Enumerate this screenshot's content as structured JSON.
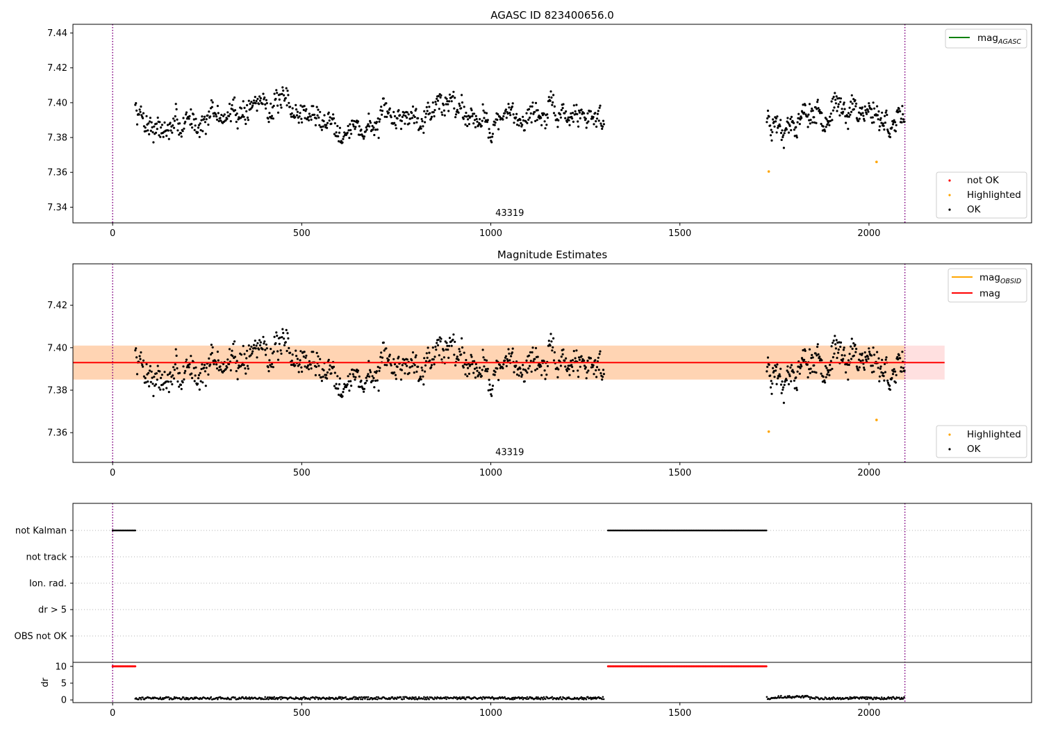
{
  "chart_data": [
    {
      "id": "p1",
      "type": "scatter",
      "title": "AGASC ID 823400656.0",
      "xlim": [
        -105,
        2430
      ],
      "ylim": [
        7.331,
        7.445
      ],
      "xticks": [
        0,
        500,
        1000,
        1500,
        2000
      ],
      "yticks": [
        7.34,
        7.36,
        7.38,
        7.4,
        7.42,
        7.44
      ],
      "ytick_labels": [
        "7.34",
        "7.36",
        "7.38",
        "7.40",
        "7.42",
        "7.44"
      ],
      "vlines": [
        0,
        2095
      ],
      "annotation": {
        "text": "43319",
        "x": 1050,
        "y": 7.335
      },
      "lines_legend": [
        {
          "label": "mag",
          "subscript": "AGASC",
          "color": "#008000"
        }
      ],
      "points_legend": [
        {
          "label": "not OK",
          "color": "#ff0000"
        },
        {
          "label": "Highlighted",
          "color": "#ffa500"
        },
        {
          "label": "OK",
          "color": "#000000"
        }
      ],
      "highlighted": [
        {
          "x": 1735,
          "y": 7.3605
        },
        {
          "x": 2020,
          "y": 7.366
        }
      ],
      "segments": [
        {
          "x_start": 60,
          "x_end": 1300,
          "step": 1.65,
          "seed": 7,
          "anchors": [
            [
              60,
              7.397
            ],
            [
              100,
              7.388
            ],
            [
              150,
              7.383
            ],
            [
              200,
              7.39
            ],
            [
              300,
              7.392
            ],
            [
              400,
              7.401
            ],
            [
              500,
              7.394
            ],
            [
              600,
              7.388
            ],
            [
              650,
              7.384
            ],
            [
              700,
              7.388
            ],
            [
              800,
              7.395
            ],
            [
              900,
              7.401
            ],
            [
              1000,
              7.388
            ],
            [
              1100,
              7.394
            ],
            [
              1200,
              7.392
            ],
            [
              1300,
              7.393
            ]
          ]
        },
        {
          "x_start": 1730,
          "x_end": 2095,
          "step": 1.45,
          "seed": 23,
          "anchors": [
            [
              1730,
              7.392
            ],
            [
              1780,
              7.388
            ],
            [
              1850,
              7.395
            ],
            [
              1950,
              7.397
            ],
            [
              2000,
              7.396
            ],
            [
              2050,
              7.39
            ],
            [
              2095,
              7.386
            ]
          ]
        }
      ]
    },
    {
      "id": "p2",
      "type": "scatter",
      "title": "Magnitude Estimates",
      "xlim": [
        -105,
        2430
      ],
      "ylim": [
        7.346,
        7.4395
      ],
      "xticks": [
        0,
        500,
        1000,
        1500,
        2000
      ],
      "yticks": [
        7.36,
        7.38,
        7.4,
        7.42
      ],
      "ytick_labels": [
        "7.36",
        "7.38",
        "7.40",
        "7.42"
      ],
      "vlines": [
        0,
        2095
      ],
      "annotation": {
        "text": "43319",
        "x": 1050,
        "y": 7.3495
      },
      "mag": 7.393,
      "band": {
        "y_low": 7.385,
        "y_high": 7.401
      },
      "band_obs": {
        "x_start": -105,
        "x_end": 2095
      },
      "band_mag": {
        "x_start": -105,
        "x_end": 2200
      },
      "lines_legend": [
        {
          "label": "mag",
          "subscript": "OBSID",
          "color": "#ffa500"
        },
        {
          "label": "mag",
          "subscript": "",
          "color": "#ff0000"
        }
      ],
      "points_legend": [
        {
          "label": "Highlighted",
          "color": "#ffa500"
        },
        {
          "label": "OK",
          "color": "#000000"
        }
      ],
      "highlighted": [
        {
          "x": 1735,
          "y": 7.3605
        },
        {
          "x": 2020,
          "y": 7.366
        }
      ]
    },
    {
      "id": "p3",
      "type": "scatter",
      "flag_labels": [
        "not Kalman",
        "not track",
        "Ion. rad.",
        "dr > 5",
        "OBS not OK"
      ],
      "flag_points": [
        {
          "x_start": 0,
          "x_end": 60,
          "flag": "not Kalman"
        },
        {
          "x_start": 1310,
          "x_end": 1730,
          "flag": "not Kalman"
        }
      ],
      "dr": {
        "ylabel": "dr",
        "yticks": [
          0,
          5,
          10
        ],
        "ytick_labels": [
          "0",
          "5",
          "10"
        ],
        "ylim": [
          -0.8,
          11.2
        ],
        "xticks": [
          0,
          500,
          1000,
          1500,
          2000
        ],
        "clipped_value": 10,
        "clipped_ranges": [
          {
            "x_start": 0,
            "x_end": 60
          },
          {
            "x_start": 1310,
            "x_end": 1730
          }
        ],
        "ok_ranges": [
          {
            "x_start": 60,
            "x_end": 1300
          },
          {
            "x_start": 1730,
            "x_end": 2095
          }
        ]
      },
      "vlines": [
        0,
        2095
      ]
    }
  ]
}
